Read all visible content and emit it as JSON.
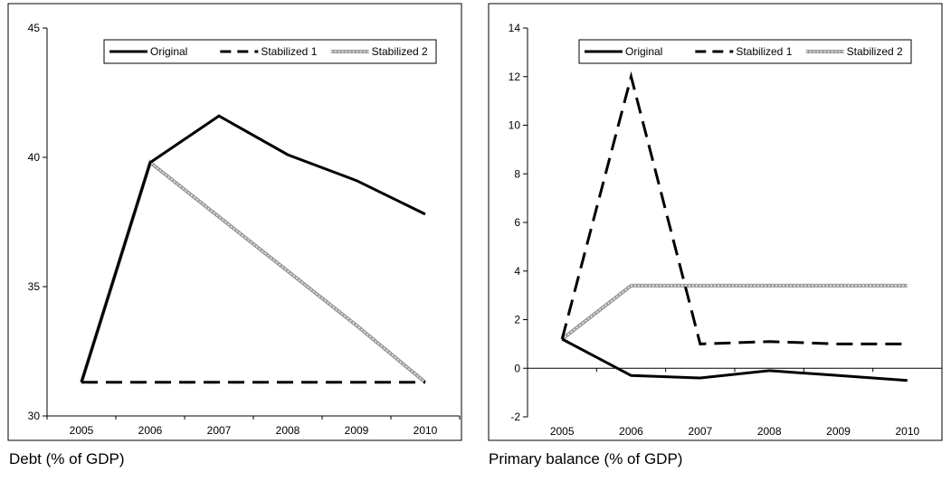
{
  "chart_data": [
    {
      "type": "line",
      "caption": "Debt (% of GDP)",
      "x": [
        "2005",
        "2006",
        "2007",
        "2008",
        "2009",
        "2010"
      ],
      "ylim": [
        30,
        45
      ],
      "yticks": [
        30,
        35,
        40,
        45
      ],
      "legend": "top",
      "grid": false,
      "series": [
        {
          "name": "Original",
          "style": "solid",
          "color": "#000000",
          "values": [
            31.3,
            39.8,
            41.6,
            40.1,
            39.1,
            37.8
          ]
        },
        {
          "name": "Stabilized 1",
          "style": "dashed",
          "color": "#000000",
          "values": [
            31.3,
            31.3,
            31.3,
            31.3,
            31.3,
            31.3
          ]
        },
        {
          "name": "Stabilized 2",
          "style": "hatched",
          "color": "#9a9a9a",
          "values": [
            31.3,
            39.8,
            37.7,
            35.6,
            33.5,
            31.3
          ]
        }
      ]
    },
    {
      "type": "line",
      "caption": "Primary balance (% of GDP)",
      "x": [
        "2005",
        "2006",
        "2007",
        "2008",
        "2009",
        "2010"
      ],
      "ylim": [
        -2,
        14
      ],
      "yticks": [
        -2,
        0,
        2,
        4,
        6,
        8,
        10,
        12,
        14
      ],
      "legend": "top",
      "grid": false,
      "zero_line": true,
      "series": [
        {
          "name": "Original",
          "style": "solid",
          "color": "#000000",
          "values": [
            1.2,
            -0.3,
            -0.4,
            -0.1,
            -0.3,
            -0.5
          ]
        },
        {
          "name": "Stabilized 1",
          "style": "dashed",
          "color": "#000000",
          "values": [
            1.2,
            12.0,
            1.0,
            1.1,
            1.0,
            1.0
          ]
        },
        {
          "name": "Stabilized 2",
          "style": "hatched",
          "color": "#9a9a9a",
          "values": [
            1.2,
            3.4,
            3.4,
            3.4,
            3.4,
            3.4
          ]
        }
      ]
    }
  ]
}
